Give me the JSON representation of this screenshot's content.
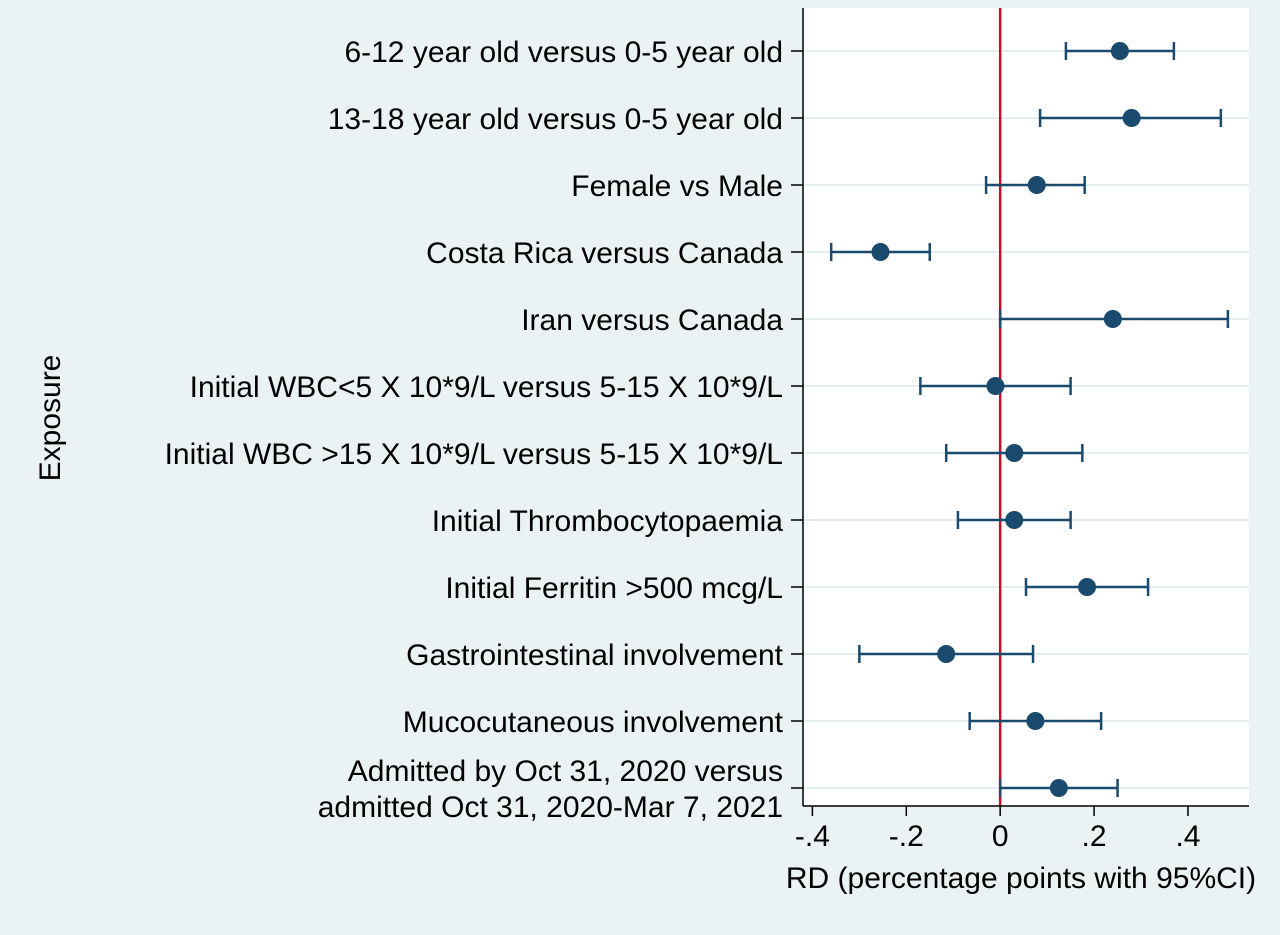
{
  "chart_data": {
    "type": "forest",
    "title": "",
    "xlabel": "RD (percentage points with 95%CI)",
    "ylabel": "Exposure",
    "xlim": [
      -0.42,
      0.53
    ],
    "xticks": [
      -0.4,
      -0.2,
      0,
      0.2,
      0.4
    ],
    "xtick_labels": [
      "-.4",
      "-.2",
      "0",
      ".2",
      ".4"
    ],
    "reference_line": 0,
    "grid": "horizontal",
    "colors": {
      "background": "#eaf2f3",
      "plot_background": "#ffffff",
      "grid": "#e3eef0",
      "point": "#1a4a6e",
      "reference_line": "#c0102c",
      "axis": "#000000"
    },
    "rows": [
      {
        "label": [
          "6-12 year old versus 0-5 year old"
        ],
        "estimate": 0.255,
        "ci_low": 0.14,
        "ci_high": 0.37
      },
      {
        "label": [
          "13-18 year old versus 0-5 year old"
        ],
        "estimate": 0.28,
        "ci_low": 0.085,
        "ci_high": 0.47
      },
      {
        "label": [
          "Female vs Male"
        ],
        "estimate": 0.078,
        "ci_low": -0.03,
        "ci_high": 0.18
      },
      {
        "label": [
          "Costa Rica versus Canada"
        ],
        "estimate": -0.255,
        "ci_low": -0.36,
        "ci_high": -0.15
      },
      {
        "label": [
          "Iran versus Canada"
        ],
        "estimate": 0.24,
        "ci_low": 0.0,
        "ci_high": 0.485
      },
      {
        "label": [
          "Initial WBC<5 X 10*9/L versus 5-15 X 10*9/L"
        ],
        "estimate": -0.01,
        "ci_low": -0.17,
        "ci_high": 0.15
      },
      {
        "label": [
          "Initial WBC >15 X 10*9/L versus 5-15 X 10*9/L"
        ],
        "estimate": 0.03,
        "ci_low": -0.115,
        "ci_high": 0.175
      },
      {
        "label": [
          "Initial Thrombocytopaemia"
        ],
        "estimate": 0.03,
        "ci_low": -0.09,
        "ci_high": 0.15
      },
      {
        "label": [
          "Initial Ferritin >500 mcg/L"
        ],
        "estimate": 0.185,
        "ci_low": 0.055,
        "ci_high": 0.315
      },
      {
        "label": [
          "Gastrointestinal involvement"
        ],
        "estimate": -0.115,
        "ci_low": -0.3,
        "ci_high": 0.07
      },
      {
        "label": [
          "Mucocutaneous involvement"
        ],
        "estimate": 0.075,
        "ci_low": -0.065,
        "ci_high": 0.215
      },
      {
        "label": [
          "Admitted by Oct 31, 2020 versus",
          "admitted Oct 31, 2020-Mar 7, 2021"
        ],
        "estimate": 0.125,
        "ci_low": 0.0,
        "ci_high": 0.25
      }
    ]
  }
}
